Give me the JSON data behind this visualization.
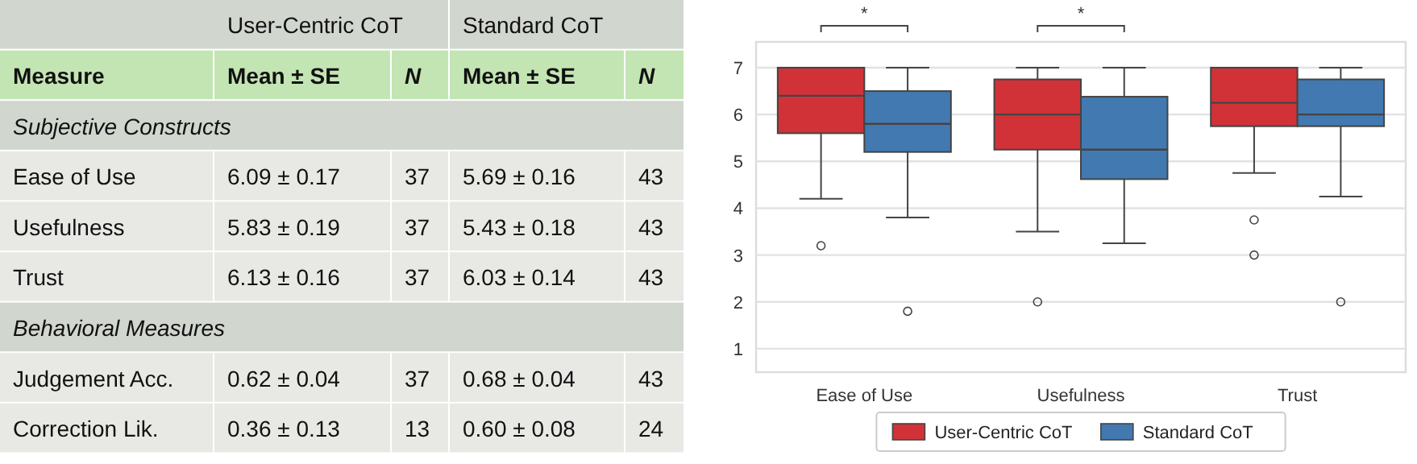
{
  "chart_data": [
    {
      "type": "other",
      "annotations": [
        "User-Centric CoT",
        "Standard CoT",
        "Measure",
        "Mean ± SE",
        "N",
        "Mean ± SE",
        "N",
        "Subjective Constructs",
        "Ease of Use",
        "6.09 ± 0.17",
        "37",
        "5.69 ± 0.16",
        "43",
        "Usefulness",
        "5.83 ± 0.19",
        "37",
        "5.43 ± 0.18",
        "43",
        "Trust",
        "6.13 ± 0.16",
        "37",
        "6.03 ± 0.14",
        "43",
        "Behavioral Measures",
        "Judgement Acc.",
        "0.62 ± 0.04",
        "37",
        "0.68 ± 0.04",
        "43",
        "Correction Lik.",
        "0.36 ± 0.13",
        "13",
        "0.60 ± 0.08",
        "24"
      ]
    },
    {
      "type": "box",
      "categories": [
        "Ease of Use",
        "Usefulness",
        "Trust"
      ],
      "ylim": [
        0.5,
        7.55
      ],
      "yticks": [
        1,
        2,
        3,
        4,
        5,
        6,
        7
      ],
      "grid": "y",
      "legend": "bottom",
      "annotations": [
        "*",
        "*"
      ],
      "series": [
        {
          "name": "User-Centric CoT",
          "color": "#d03238",
          "boxes": [
            {
              "low": 4.2,
              "q1": 5.6,
              "median": 6.4,
              "q3": 7,
              "high": 7,
              "outliers": [
                3.2
              ]
            },
            {
              "low": 3.5,
              "q1": 5.25,
              "median": 6,
              "q3": 6.75,
              "high": 7,
              "outliers": [
                2
              ]
            },
            {
              "low": 4.75,
              "q1": 5.75,
              "median": 6.25,
              "q3": 7,
              "high": 7,
              "outliers": [
                3.75,
                3
              ]
            }
          ]
        },
        {
          "name": "Standard CoT",
          "color": "#4279b0",
          "boxes": [
            {
              "low": 3.8,
              "q1": 5.2,
              "median": 5.8,
              "q3": 6.5,
              "high": 7,
              "outliers": [
                1.8
              ]
            },
            {
              "low": 3.25,
              "q1": 4.62,
              "median": 5.25,
              "q3": 6.38,
              "high": 7
            },
            {
              "low": 4.25,
              "q1": 5.75,
              "median": 6,
              "q3": 6.75,
              "high": 7,
              "outliers": [
                2
              ]
            }
          ]
        }
      ]
    }
  ]
}
